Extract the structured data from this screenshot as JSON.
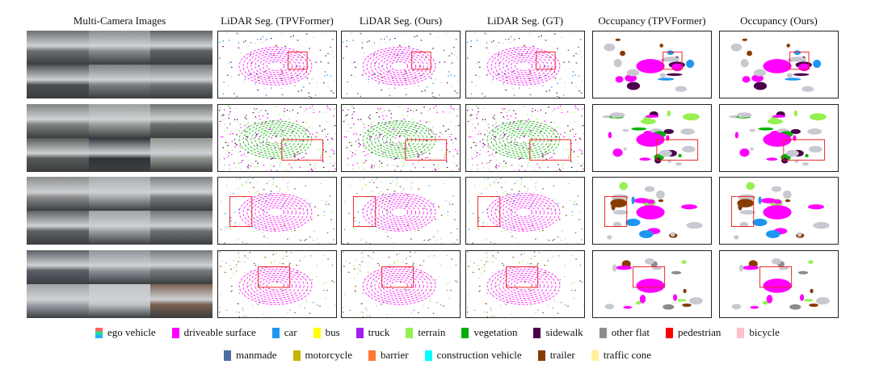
{
  "columns": [
    "Multi-Camera Images",
    "LiDAR Seg. (TPVFormer)",
    "LiDAR Seg. (Ours)",
    "LiDAR Seg. (GT)",
    "Occupancy (TPVFormer)",
    "Occupancy (Ours)"
  ],
  "legend": [
    [
      {
        "label": "ego vehicle",
        "color": "ego"
      },
      {
        "label": "driveable surface",
        "color": "#ff00ff"
      },
      {
        "label": "car",
        "color": "#1e96f0"
      },
      {
        "label": "bus",
        "color": "#ffff00"
      },
      {
        "label": "truck",
        "color": "#a020f0"
      },
      {
        "label": "terrain",
        "color": "#96f050"
      },
      {
        "label": "vegetation",
        "color": "#00af00"
      },
      {
        "label": "sidewalk",
        "color": "#4b004b"
      },
      {
        "label": "other flat",
        "color": "#8c8c8c"
      },
      {
        "label": "pedestrian",
        "color": "#ff0000"
      },
      {
        "label": "bicycle",
        "color": "#ffc0cb"
      }
    ],
    [
      {
        "label": "manmade",
        "color": "#4a6fa0"
      },
      {
        "label": "motorcycle",
        "color": "#c8b400"
      },
      {
        "label": "barrier",
        "color": "#ff7832"
      },
      {
        "label": "construction vehicle",
        "color": "#00ffff"
      },
      {
        "label": "trailer",
        "color": "#873c00"
      },
      {
        "label": "traffic cone",
        "color": "#fff09a"
      }
    ]
  ]
}
